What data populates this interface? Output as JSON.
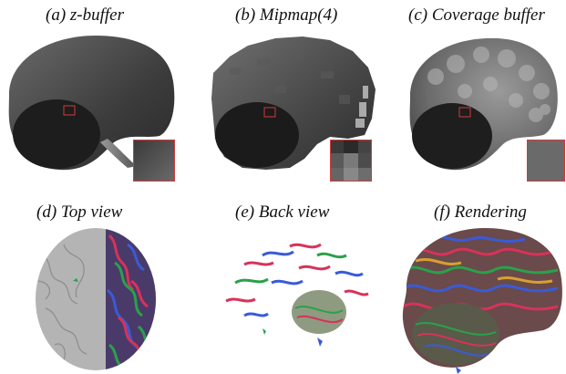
{
  "figure": {
    "panels": [
      {
        "id": "a",
        "caption": "(a) z-buffer",
        "kind": "depth",
        "inset": "gradient"
      },
      {
        "id": "b",
        "caption": "(b) Mipmap(4)",
        "kind": "depth-blocky",
        "inset": "blocks"
      },
      {
        "id": "c",
        "caption": "(c) Coverage buffer",
        "kind": "depth-blobs",
        "inset": "flat"
      },
      {
        "id": "d",
        "caption": "(d) Top view",
        "kind": "top-view"
      },
      {
        "id": "e",
        "caption": "(e) Back view",
        "kind": "back-view"
      },
      {
        "id": "f",
        "caption": "(f) Rendering",
        "kind": "rendering"
      }
    ],
    "colors": {
      "inset_frame": "#d23a3a",
      "grey_cortex": "#b4b4b4",
      "fiber_red": "#d8325a",
      "fiber_green": "#2aa14a",
      "fiber_blue": "#3a5bd6"
    }
  }
}
